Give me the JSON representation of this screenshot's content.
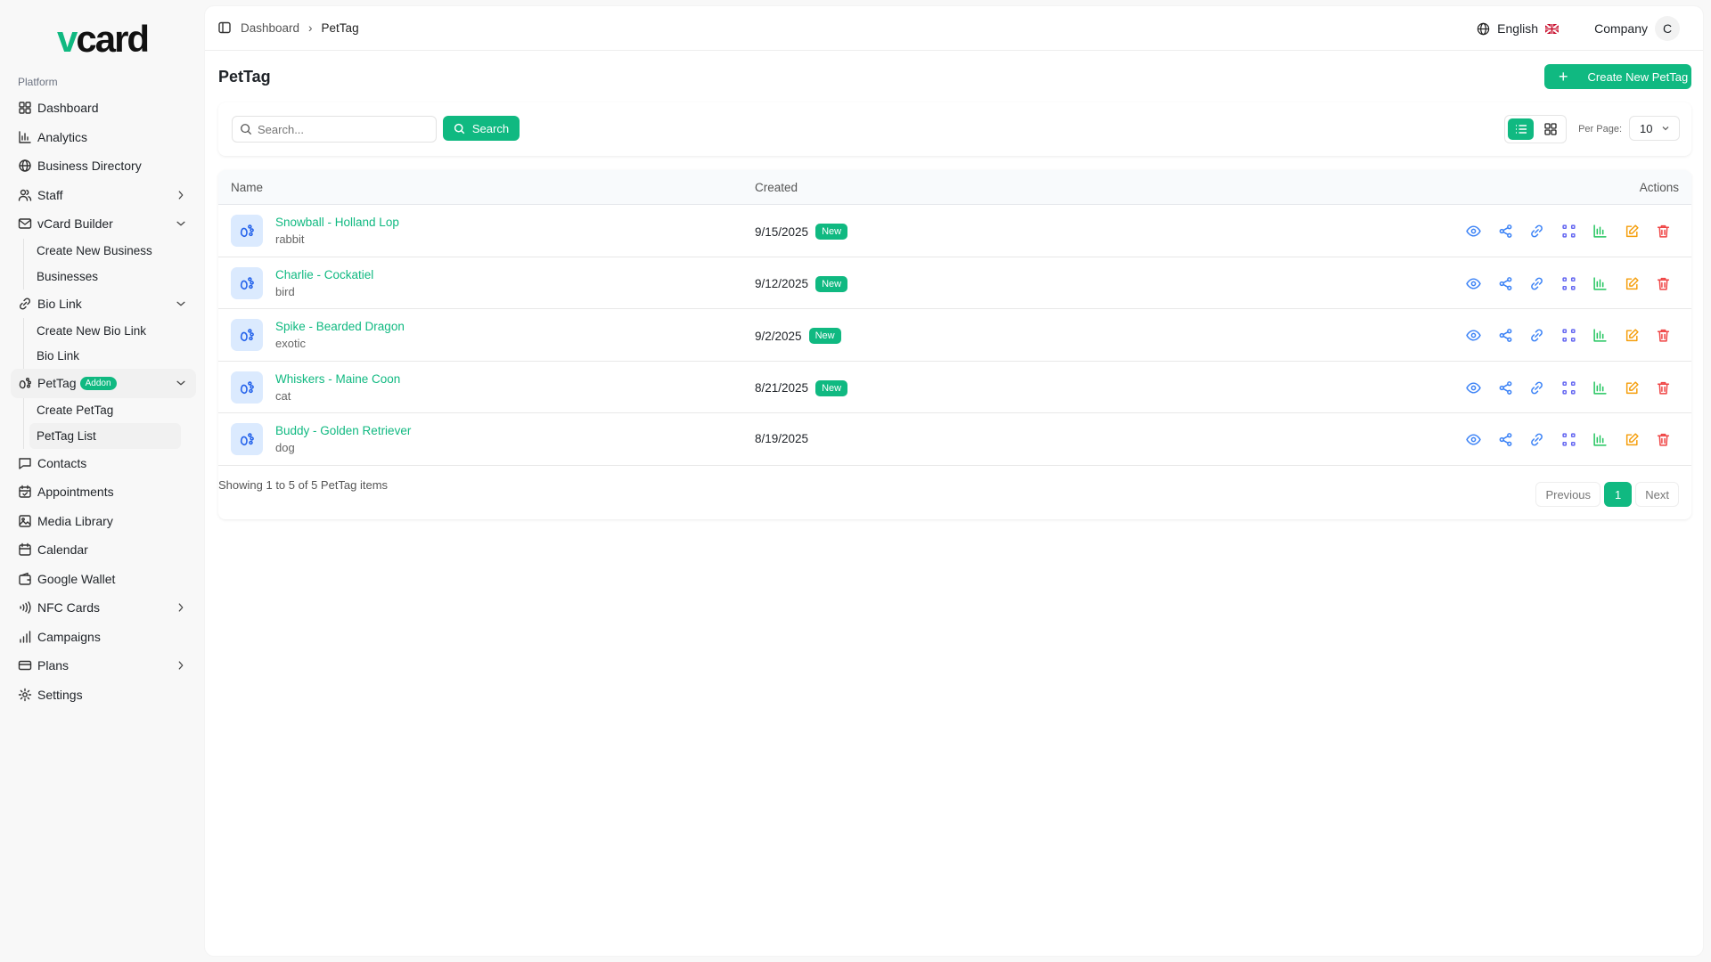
{
  "brand": {
    "logo": "vcard",
    "accent": "#10b981"
  },
  "sidebar": {
    "section": "Platform",
    "items": [
      {
        "label": "Dashboard",
        "icon": "dashboard-icon"
      },
      {
        "label": "Analytics",
        "icon": "analytics-icon"
      },
      {
        "label": "Business Directory",
        "icon": "globe-icon"
      },
      {
        "label": "Staff",
        "icon": "users-icon",
        "chevron": "right"
      },
      {
        "label": "vCard Builder",
        "icon": "mail-icon",
        "chevron": "down",
        "children": [
          "Create New Business",
          "Businesses"
        ]
      },
      {
        "label": "Bio Link",
        "icon": "link-icon",
        "chevron": "down",
        "children": [
          "Create New Bio Link",
          "Bio Link"
        ]
      },
      {
        "label": "PetTag",
        "icon": "paw-icon",
        "badge": "Addon",
        "chevron": "down",
        "children": [
          "Create PetTag",
          "PetTag List"
        ]
      },
      {
        "label": "Contacts",
        "icon": "message-icon"
      },
      {
        "label": "Appointments",
        "icon": "calendar-check-icon"
      },
      {
        "label": "Media Library",
        "icon": "image-icon"
      },
      {
        "label": "Calendar",
        "icon": "calendar-icon"
      },
      {
        "label": "Google Wallet",
        "icon": "wallet-icon"
      },
      {
        "label": "NFC Cards",
        "icon": "nfc-icon",
        "chevron": "right"
      },
      {
        "label": "Campaigns",
        "icon": "bar-chart-icon"
      },
      {
        "label": "Plans",
        "icon": "card-icon",
        "chevron": "right"
      },
      {
        "label": "Settings",
        "icon": "gear-icon"
      }
    ]
  },
  "header": {
    "breadcrumb": [
      "Dashboard",
      "PetTag"
    ],
    "language": "English",
    "company": "Company",
    "avatar": "C"
  },
  "page": {
    "title": "PetTag",
    "create_label": "Create New PetTag"
  },
  "toolbar": {
    "search_placeholder": "Search...",
    "search_label": "Search",
    "per_page_label": "Per Page:",
    "per_page": "10",
    "view": "list"
  },
  "table": {
    "columns": [
      "Name",
      "Created",
      "Actions"
    ],
    "rows": [
      {
        "name": "Snowball - Holland Lop",
        "type": "rabbit",
        "created": "9/15/2025",
        "badge": "New"
      },
      {
        "name": "Charlie - Cockatiel",
        "type": "bird",
        "created": "9/12/2025",
        "badge": "New"
      },
      {
        "name": "Spike - Bearded Dragon",
        "type": "exotic",
        "created": "9/2/2025",
        "badge": "New"
      },
      {
        "name": "Whiskers - Maine Coon",
        "type": "cat",
        "created": "8/21/2025",
        "badge": "New"
      },
      {
        "name": "Buddy - Golden Retriever",
        "type": "dog",
        "created": "8/19/2025",
        "badge": null
      }
    ]
  },
  "footer": {
    "showing": "Showing 1 to 5 of 5 PetTag items",
    "prev": "Previous",
    "page": "1",
    "next": "Next"
  }
}
